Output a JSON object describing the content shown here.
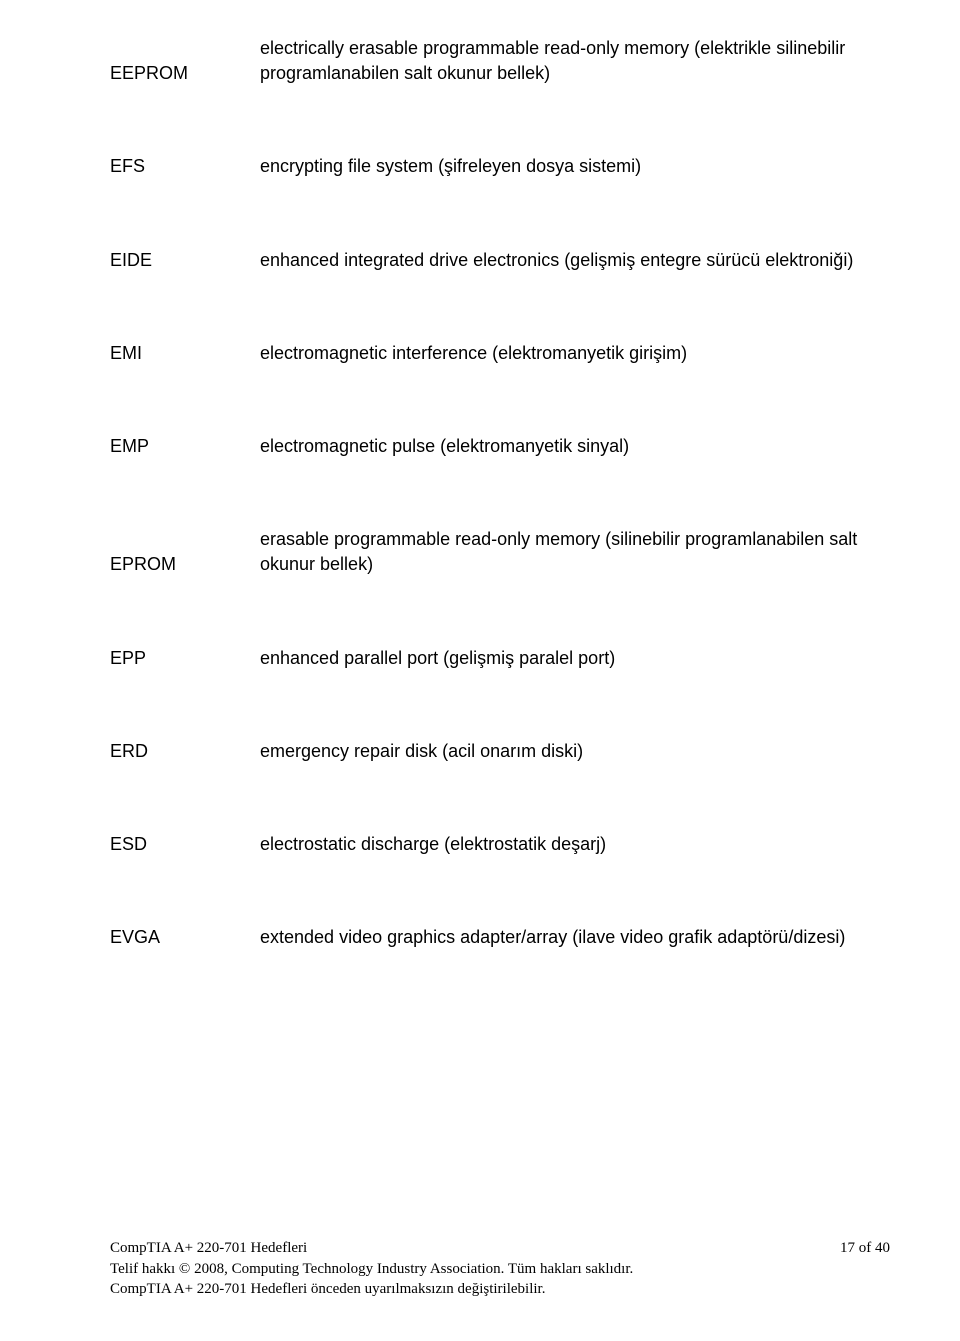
{
  "entries": [
    {
      "term": "EEPROM",
      "definition": "electrically erasable programmable read-only memory (elektrikle silinebilir programlanabilen salt okunur bellek)",
      "termAlignBottom": true
    },
    {
      "term": "EFS",
      "definition": "encrypting file system (şifreleyen dosya sistemi)"
    },
    {
      "term": "EIDE",
      "definition": "enhanced integrated drive electronics (gelişmiş entegre sürücü elektroniği)"
    },
    {
      "term": "EMI",
      "definition": "electromagnetic interference (elektromanyetik girişim)"
    },
    {
      "term": "EMP",
      "definition": "electromagnetic pulse (elektromanyetik sinyal)"
    },
    {
      "term": "EPROM",
      "definition": "erasable programmable read-only memory (silinebilir programlanabilen salt okunur bellek)",
      "termAlignBottom": true
    },
    {
      "term": "EPP",
      "definition": "enhanced parallel port (gelişmiş paralel port)"
    },
    {
      "term": "ERD",
      "definition": "emergency repair disk (acil onarım diski)"
    },
    {
      "term": "ESD",
      "definition": "electrostatic discharge (elektrostatik deşarj)"
    },
    {
      "term": "EVGA",
      "definition": "extended video graphics adapter/array (ilave video grafik adaptörü/dizesi)"
    }
  ],
  "footer": {
    "left": "CompTIA A+ 220-701 Hedefleri",
    "right": "17 of 40",
    "line2": "Telif hakkı © 2008, Computing Technology Industry Association.  Tüm hakları saklıdır.",
    "line3": "CompTIA A+ 220-701 Hedefleri önceden uyarılmaksızın değiştirilebilir."
  }
}
